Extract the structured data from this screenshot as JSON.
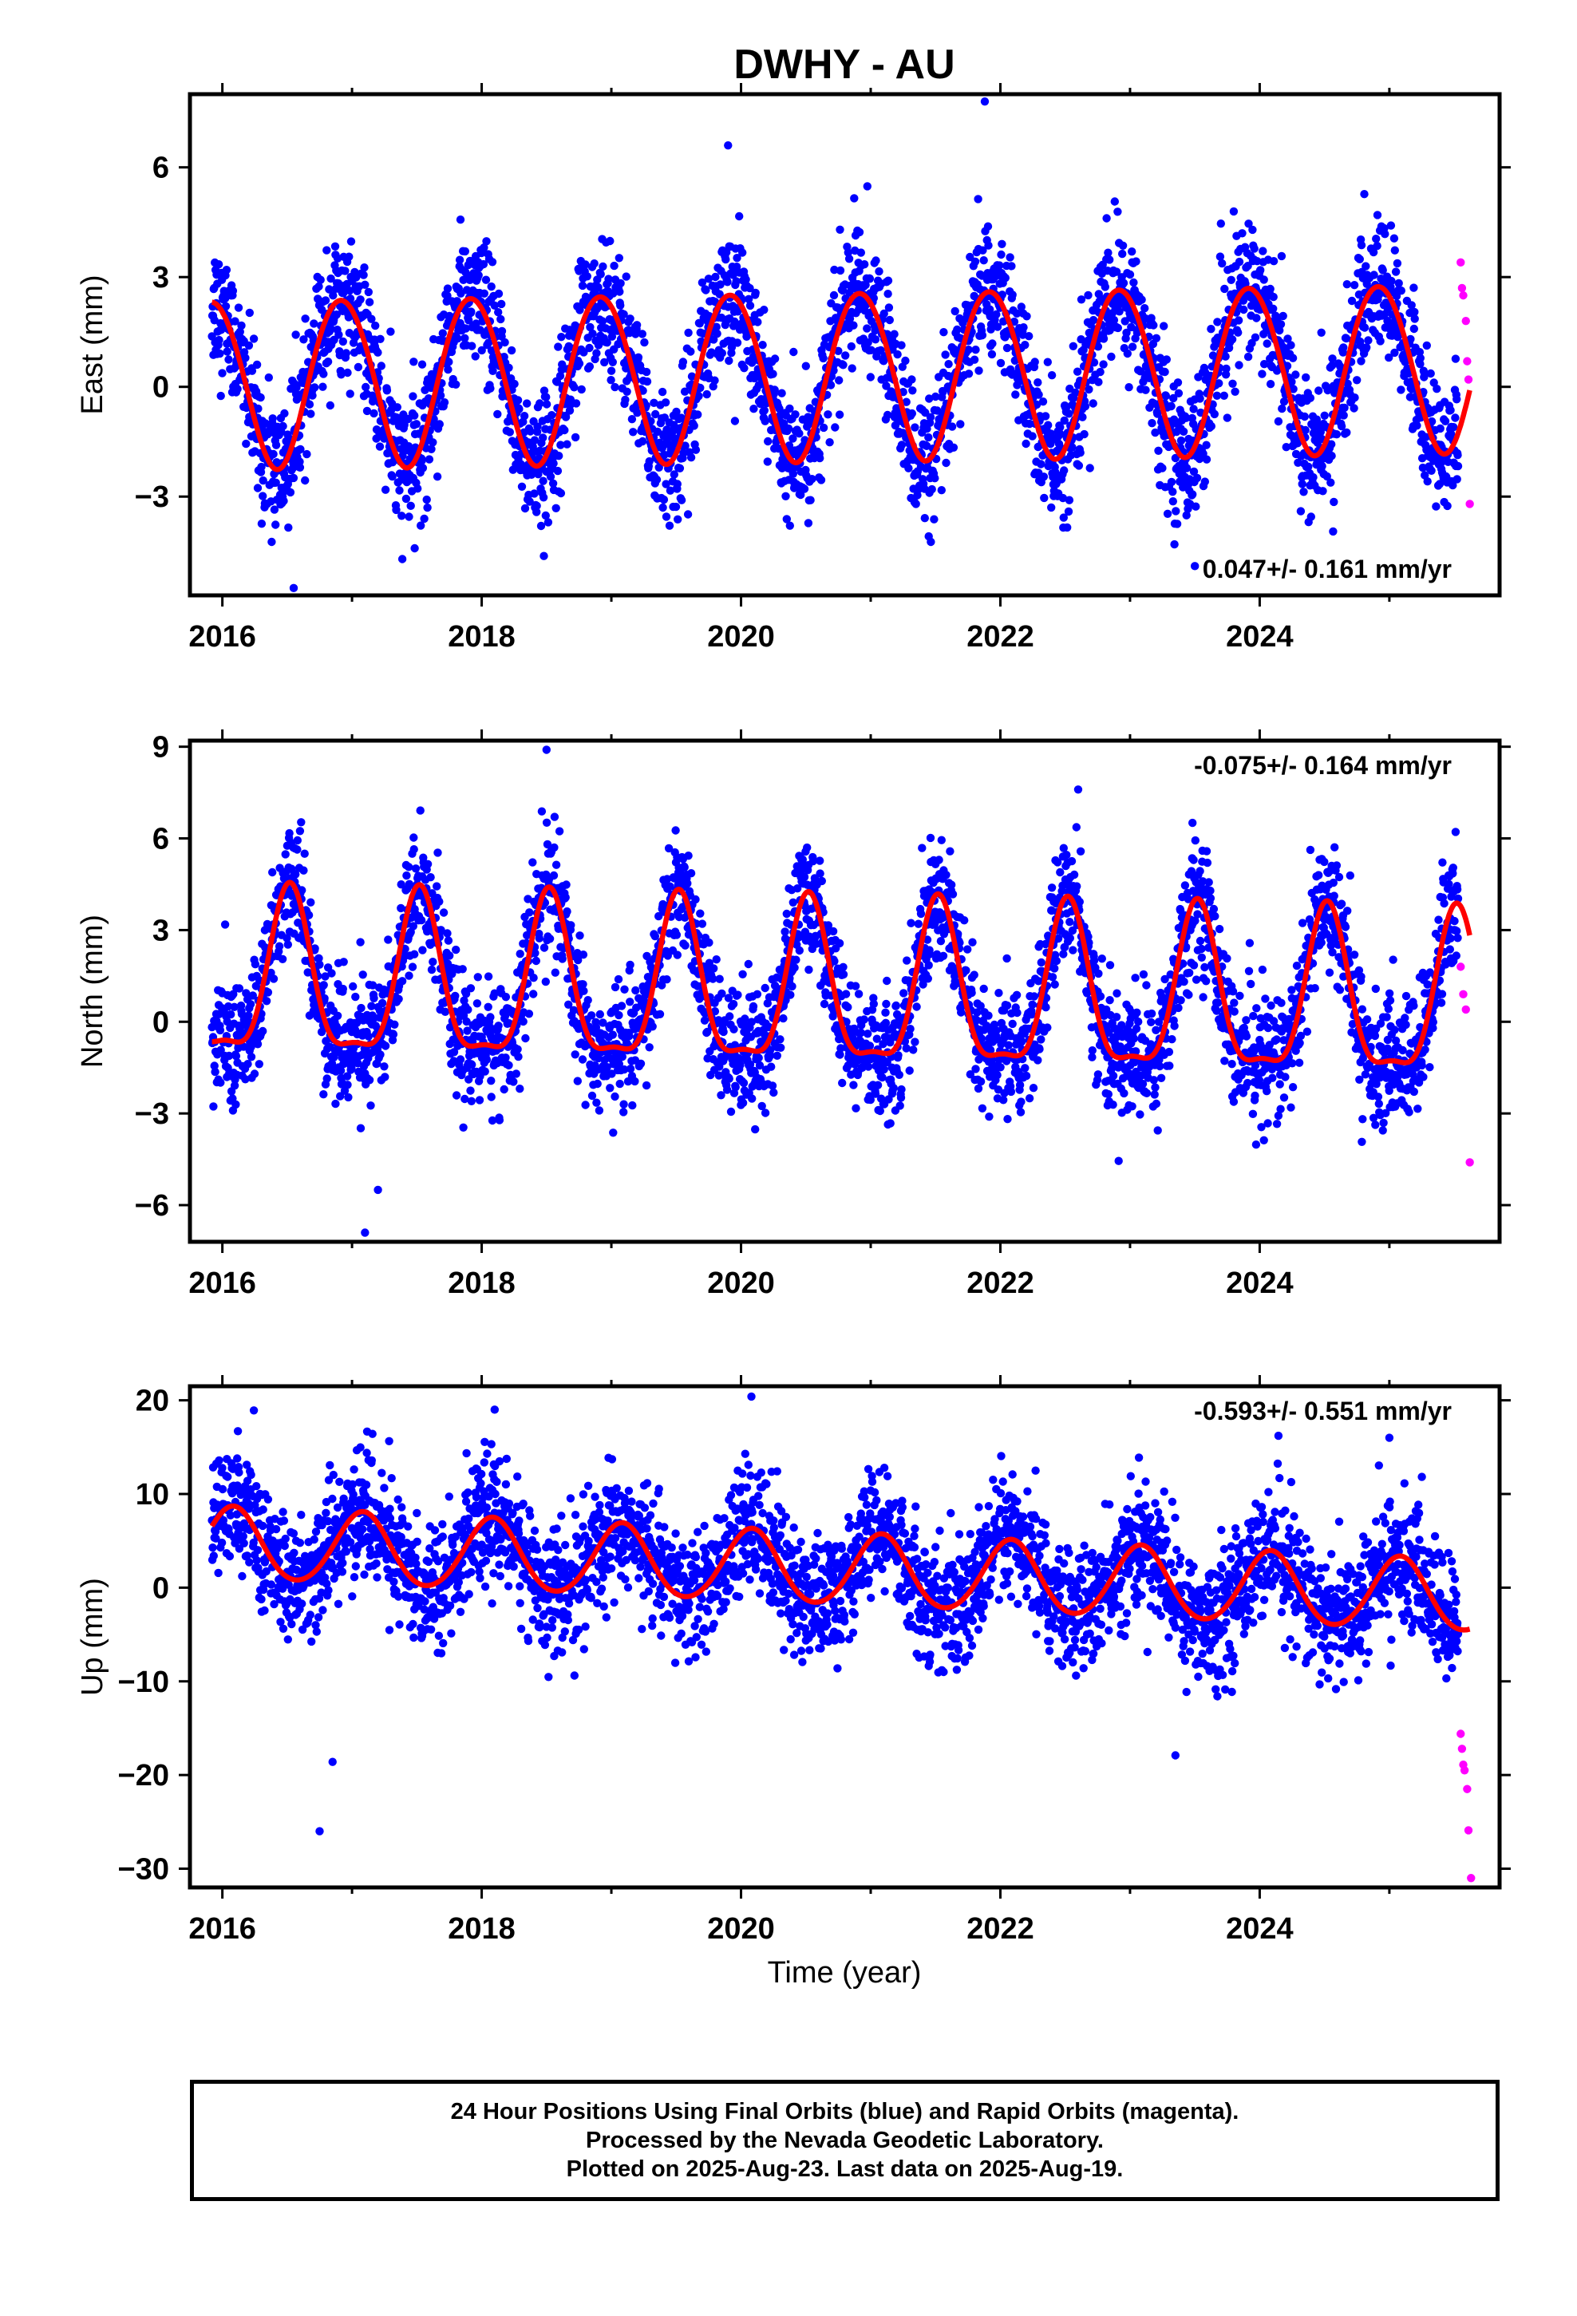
{
  "title": "DWHY - AU",
  "xlabel": "Time (year)",
  "colors": {
    "final": "#0000ff",
    "rapid": "#ff00ff",
    "model": "#ff0000",
    "frame": "#000000"
  },
  "xticks": [
    "2016",
    "2018",
    "2020",
    "2022",
    "2024"
  ],
  "caption": {
    "line1": "24 Hour Positions Using Final Orbits (blue) and Rapid Orbits (magenta).",
    "line2": "Processed by the Nevada Geodetic Laboratory.",
    "line3": "Plotted on 2025-Aug-23. Last data on 2025-Aug-19."
  },
  "chart_data": [
    {
      "type": "scatter",
      "name": "east",
      "ylabel": "East (mm)",
      "xlim": [
        2015.75,
        2025.85
      ],
      "ylim": [
        -5.7,
        8.0
      ],
      "yticks": [
        "-3",
        "0",
        "3",
        "6"
      ],
      "rate_label": "0.047+/- 0.161 mm/yr",
      "rate_position": "bottom-right",
      "data_start": 2015.92,
      "final_end": 2025.53,
      "model": {
        "offset": 0.3,
        "trend": 0.047,
        "annual_amplitude": 2.3,
        "annual_peak": 0.92,
        "semiannual_amplitude": 0.1,
        "semiannual_peak": 0.2
      },
      "scatter_sd": 0.9,
      "outliers_final": [
        [
          2021.88,
          7.8
        ],
        [
          2016.55,
          -5.5
        ],
        [
          2023.5,
          -4.9
        ],
        [
          2019.9,
          6.6
        ]
      ],
      "rapid_points": [
        [
          2025.55,
          3.4
        ],
        [
          2025.56,
          2.7
        ],
        [
          2025.57,
          2.5
        ],
        [
          2025.59,
          1.8
        ],
        [
          2025.6,
          0.7
        ],
        [
          2025.61,
          0.2
        ],
        [
          2025.62,
          -3.2
        ]
      ]
    },
    {
      "type": "scatter",
      "name": "north",
      "ylabel": "North (mm)",
      "xlim": [
        2015.75,
        2025.85
      ],
      "ylim": [
        -7.2,
        9.2
      ],
      "yticks": [
        "-6",
        "-3",
        "0",
        "3",
        "6",
        "9"
      ],
      "rate_label": "-0.075+/- 0.164 mm/yr",
      "rate_position": "top-right",
      "data_start": 2015.92,
      "final_end": 2025.53,
      "model": {
        "offset": 0.9,
        "trend": -0.075,
        "annual_amplitude": 2.6,
        "annual_peak": 0.52,
        "semiannual_amplitude": 0.8,
        "semiannual_peak": 0.02
      },
      "scatter_sd": 1.0,
      "outliers_final": [
        [
          2018.5,
          8.9
        ],
        [
          2017.1,
          -6.9
        ],
        [
          2017.2,
          -5.5
        ],
        [
          2022.6,
          7.6
        ]
      ],
      "rapid_points": [
        [
          2025.55,
          1.8
        ],
        [
          2025.57,
          0.9
        ],
        [
          2025.59,
          0.4
        ],
        [
          2025.62,
          -4.6
        ]
      ]
    },
    {
      "type": "scatter",
      "name": "up",
      "ylabel": "Up (mm)",
      "xlim": [
        2015.75,
        2025.85
      ],
      "ylim": [
        -32.0,
        21.5
      ],
      "yticks": [
        "-30",
        "-20",
        "-10",
        "0",
        "10",
        "20"
      ],
      "rate_label": "-0.593+/- 0.551 mm/yr",
      "rate_position": "top-right",
      "data_start": 2015.92,
      "final_end": 2025.53,
      "model": {
        "offset": 2.3,
        "trend": -0.593,
        "annual_amplitude": 3.8,
        "annual_peak": 0.08,
        "semiannual_amplitude": 0.3,
        "semiannual_peak": 0.1
      },
      "scatter_sd": 3.3,
      "outliers_final": [
        [
          2016.75,
          -26.0
        ],
        [
          2016.85,
          -18.6
        ],
        [
          2020.08,
          20.4
        ],
        [
          2018.1,
          19.0
        ],
        [
          2023.35,
          -17.9
        ],
        [
          2025.0,
          16.0
        ]
      ],
      "rapid_points": [
        [
          2025.55,
          -15.6
        ],
        [
          2025.56,
          -17.2
        ],
        [
          2025.57,
          -18.9
        ],
        [
          2025.58,
          -19.5
        ],
        [
          2025.6,
          -21.5
        ],
        [
          2025.61,
          -25.9
        ],
        [
          2025.63,
          -31.0
        ]
      ]
    }
  ]
}
